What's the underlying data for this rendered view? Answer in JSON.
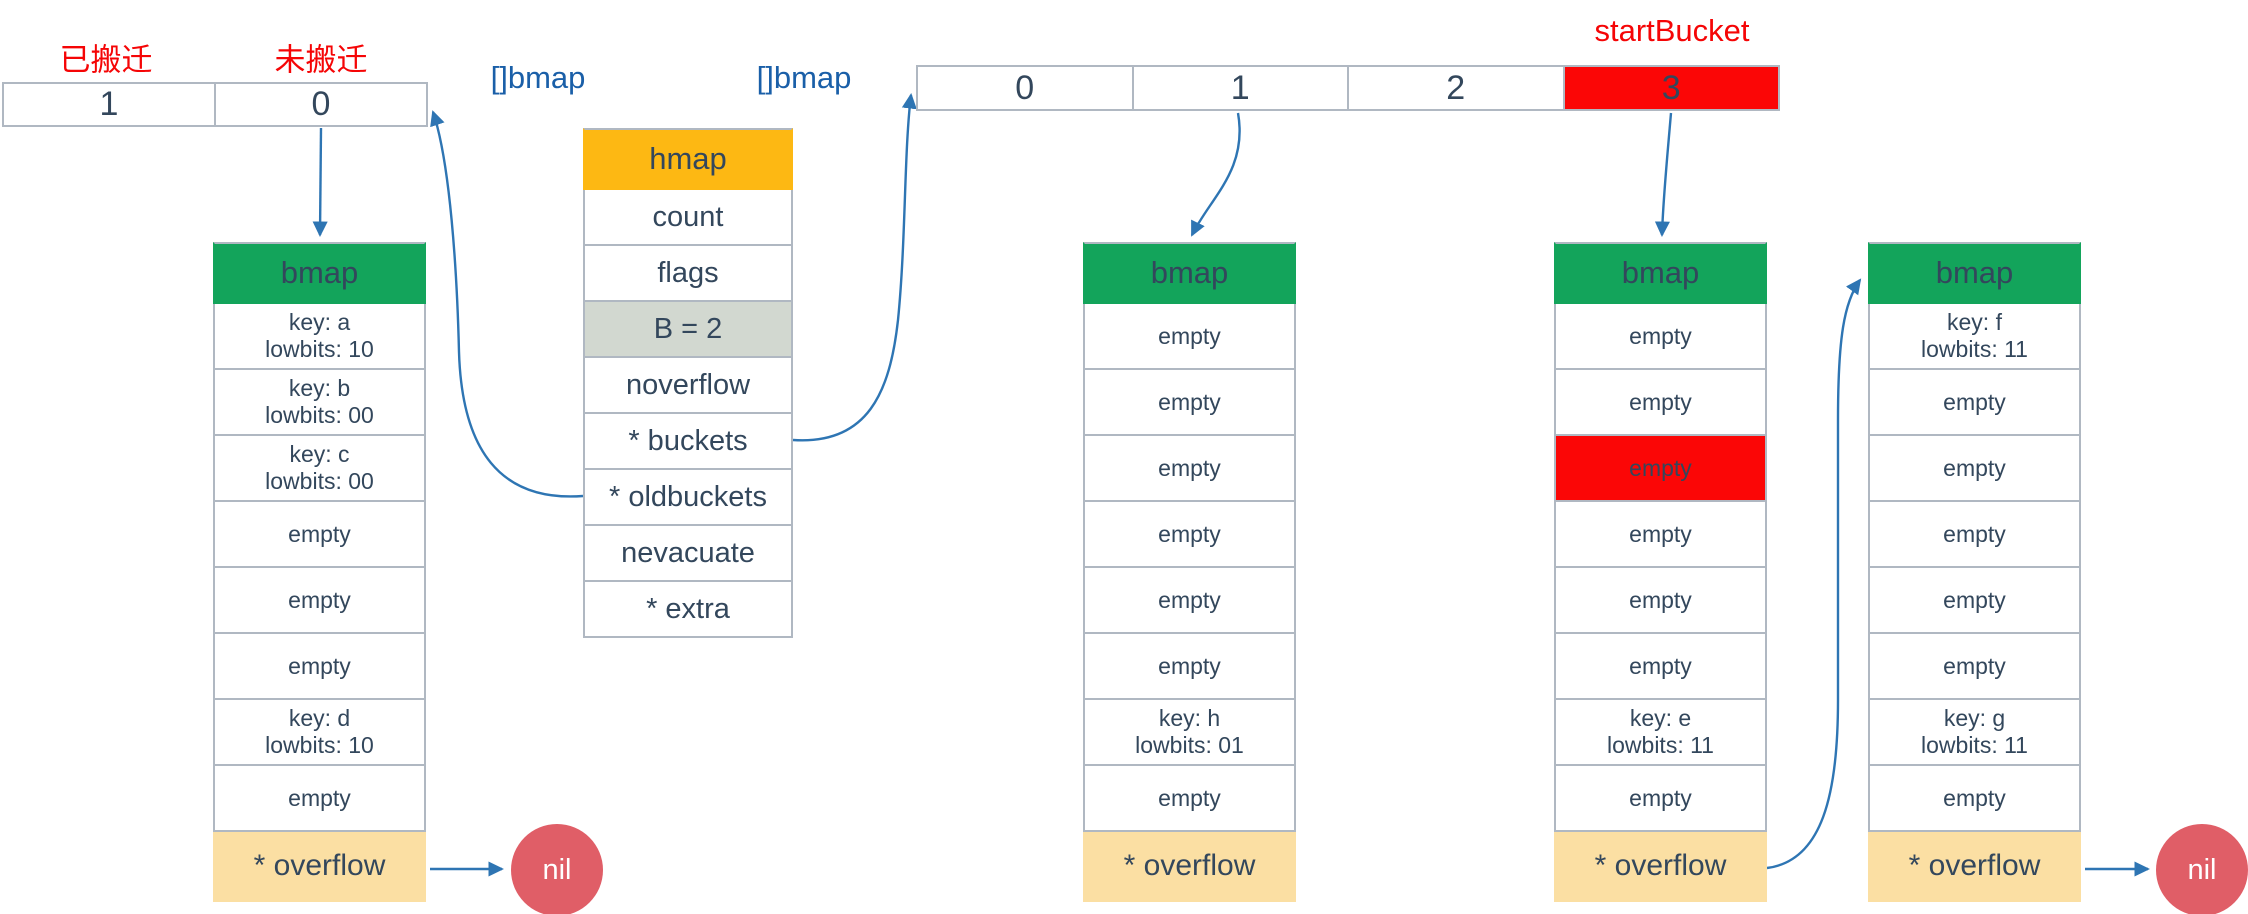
{
  "labels": {
    "migrated": "已搬迁",
    "not_migrated": "未搬迁",
    "start_bucket": "startBucket",
    "oldbuckets_slice": "[]bmap",
    "buckets_slice": "[]bmap"
  },
  "colors": {
    "green_header": "#13a45b",
    "orange_header": "#fdb813",
    "gray_row": "#d2d8d0",
    "peach_row": "#fbdfa3",
    "red_cell": "#fb0606",
    "nil_circle": "#e05e67",
    "red_text": "#f50506",
    "blue_text": "#1a5fa8",
    "arrow": "#2e75b3",
    "dark_text": "#33475c",
    "border": "#b0b8c2"
  },
  "oldbuckets_table": {
    "cells": [
      "1",
      "0"
    ]
  },
  "buckets_array": {
    "cells": [
      "0",
      "1",
      "2",
      "3"
    ],
    "highlight_index": 3
  },
  "hmap_struct": {
    "title": "hmap",
    "fields": [
      "count",
      "flags",
      "B = 2",
      "noverflow",
      "* buckets",
      "* oldbuckets",
      "nevacuate",
      "* extra"
    ],
    "highlight_field": "B = 2"
  },
  "bmaps": [
    {
      "title": "bmap",
      "overflow": "* overflow",
      "slots": [
        {
          "lines": [
            "key: a",
            "lowbits: 10"
          ]
        },
        {
          "lines": [
            "key: b",
            "lowbits: 00"
          ]
        },
        {
          "lines": [
            "key: c",
            "lowbits: 00"
          ]
        },
        {
          "lines": [
            "empty"
          ]
        },
        {
          "lines": [
            "empty"
          ]
        },
        {
          "lines": [
            "empty"
          ]
        },
        {
          "lines": [
            "key: d",
            "lowbits: 10"
          ]
        },
        {
          "lines": [
            "empty"
          ]
        }
      ]
    },
    {
      "title": "bmap",
      "overflow": "* overflow",
      "slots": [
        {
          "lines": [
            "empty"
          ]
        },
        {
          "lines": [
            "empty"
          ]
        },
        {
          "lines": [
            "empty"
          ]
        },
        {
          "lines": [
            "empty"
          ]
        },
        {
          "lines": [
            "empty"
          ]
        },
        {
          "lines": [
            "empty"
          ]
        },
        {
          "lines": [
            "key: h",
            "lowbits: 01"
          ]
        },
        {
          "lines": [
            "empty"
          ]
        }
      ]
    },
    {
      "title": "bmap",
      "overflow": "* overflow",
      "slots": [
        {
          "lines": [
            "empty"
          ]
        },
        {
          "lines": [
            "empty"
          ]
        },
        {
          "lines": [
            "empty"
          ],
          "highlight": true
        },
        {
          "lines": [
            "empty"
          ]
        },
        {
          "lines": [
            "empty"
          ]
        },
        {
          "lines": [
            "empty"
          ]
        },
        {
          "lines": [
            "key: e",
            "lowbits: 11"
          ]
        },
        {
          "lines": [
            "empty"
          ]
        }
      ]
    },
    {
      "title": "bmap",
      "overflow": "* overflow",
      "slots": [
        {
          "lines": [
            "key: f",
            "lowbits: 11"
          ]
        },
        {
          "lines": [
            "empty"
          ]
        },
        {
          "lines": [
            "empty"
          ]
        },
        {
          "lines": [
            "empty"
          ]
        },
        {
          "lines": [
            "empty"
          ]
        },
        {
          "lines": [
            "empty"
          ]
        },
        {
          "lines": [
            "key: g",
            "lowbits: 11"
          ]
        },
        {
          "lines": [
            "empty"
          ]
        }
      ]
    }
  ],
  "nil_labels": [
    "nil",
    "nil"
  ]
}
